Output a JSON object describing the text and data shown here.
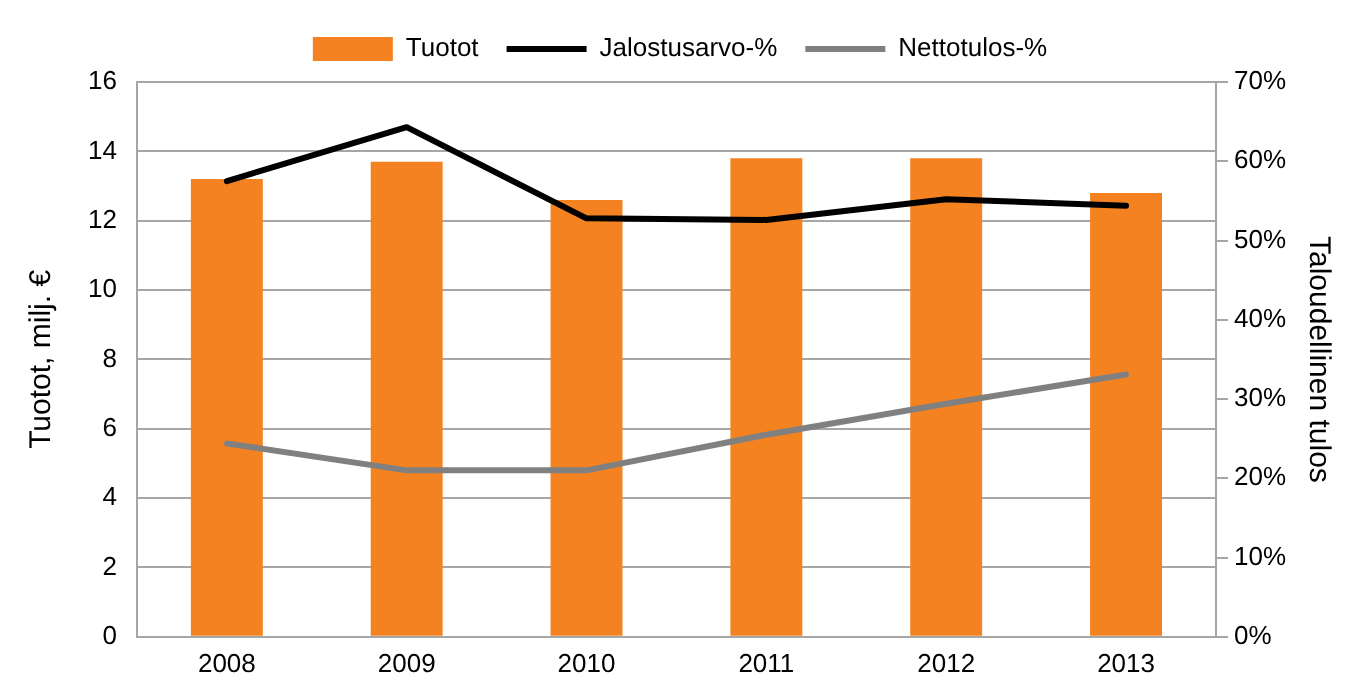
{
  "chart_data": {
    "type": "bar",
    "categories": [
      "2008",
      "2009",
      "2010",
      "2011",
      "2012",
      "2013"
    ],
    "series": [
      {
        "name": "Tuotot",
        "color": "#f58220",
        "values": [
          13.2,
          13.7,
          12.6,
          13.8,
          13.8,
          12.8
        ]
      },
      {
        "name": "Jalostusarvo-%",
        "type": "line",
        "axis": "y2",
        "color": "#000000",
        "values": [
          57.5,
          64.3,
          52.8,
          52.6,
          55.2,
          54.4
        ]
      },
      {
        "name": "Nettotulos-%",
        "type": "line",
        "axis": "y2",
        "color": "#808080",
        "values": [
          24.4,
          21.0,
          21.0,
          25.5,
          29.4,
          33.1
        ]
      }
    ],
    "ylabel": "Tuotot, milj. €",
    "y2label": "Taloudellinen tulos",
    "ylim": [
      0,
      16
    ],
    "yticks": [
      0,
      2,
      4,
      6,
      8,
      10,
      12,
      14,
      16
    ],
    "y2lim": [
      0,
      70
    ],
    "y2ticks": [
      {
        "value": 0,
        "label": "0%"
      },
      {
        "value": 10,
        "label": "10%"
      },
      {
        "value": 20,
        "label": "20%"
      },
      {
        "value": 30,
        "label": "30%"
      },
      {
        "value": 40,
        "label": "40%"
      },
      {
        "value": 50,
        "label": "50%"
      },
      {
        "value": 60,
        "label": "60%"
      },
      {
        "value": 70,
        "label": "70%"
      }
    ],
    "grid": "y",
    "legend": "top",
    "marker": "none",
    "line_style": "solid"
  }
}
